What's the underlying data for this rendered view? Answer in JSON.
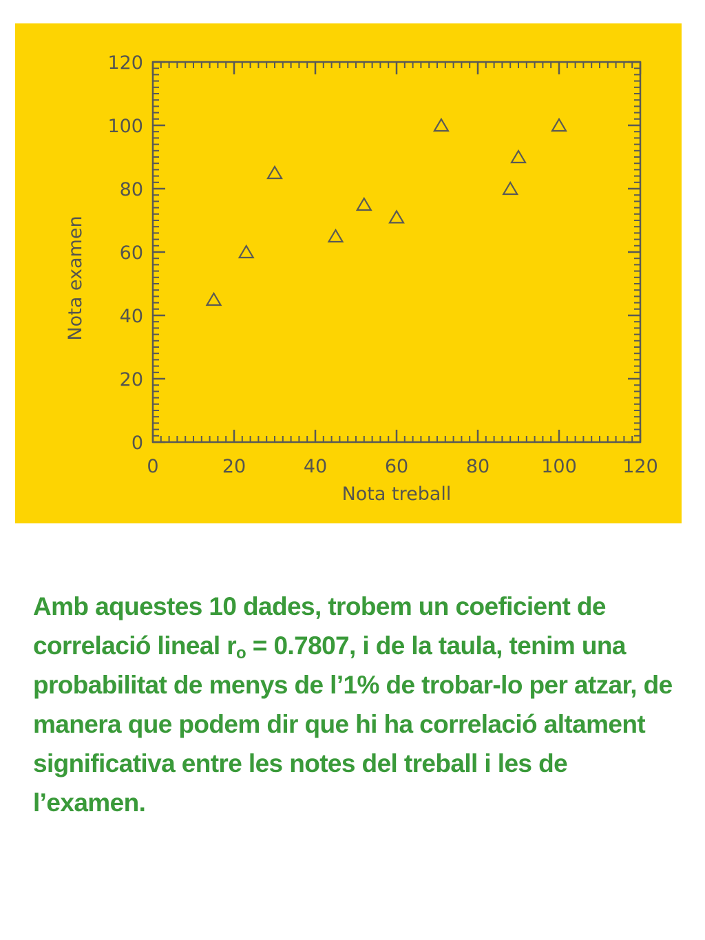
{
  "chart_data": {
    "type": "scatter",
    "xlabel": "Nota treball",
    "ylabel": "Nota examen",
    "xlim": [
      0,
      120
    ],
    "ylim": [
      0,
      120
    ],
    "xticks": [
      0,
      20,
      40,
      60,
      80,
      100,
      120
    ],
    "yticks": [
      0,
      20,
      40,
      60,
      80,
      100,
      120
    ],
    "marker": "triangle-open",
    "grid": false,
    "background_color": "#fdd402",
    "axis_color": "#5a5a55",
    "points": [
      {
        "x": 15,
        "y": 45
      },
      {
        "x": 23,
        "y": 60
      },
      {
        "x": 30,
        "y": 85
      },
      {
        "x": 45,
        "y": 65
      },
      {
        "x": 52,
        "y": 75
      },
      {
        "x": 60,
        "y": 71
      },
      {
        "x": 71,
        "y": 100
      },
      {
        "x": 88,
        "y": 80
      },
      {
        "x": 90,
        "y": 90
      },
      {
        "x": 100,
        "y": 100
      }
    ]
  },
  "text": {
    "part1": "Amb aquestes 10 dades, trobem un coeficient de correlació lineal r",
    "subscript": "o",
    "part2": " = 0.7807, i de la taula, tenim una probabilitat de menys de l’1% de trobar-lo per atzar, de manera que podem dir que hi ha correlació altament significativa entre les notes del treball i les de l’examen.",
    "color": "#3a9a3a"
  }
}
